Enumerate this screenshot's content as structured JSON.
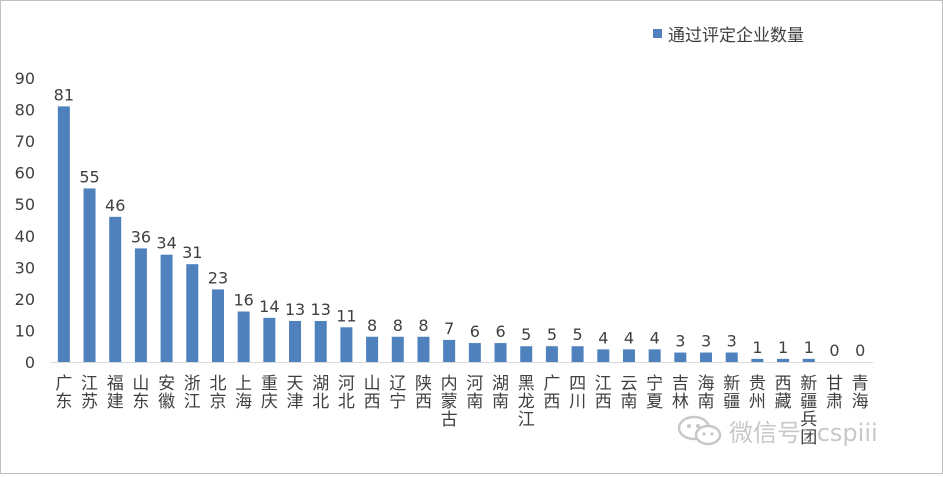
{
  "chart_data": {
    "type": "bar",
    "title": "",
    "xlabel": "",
    "ylabel": "",
    "ylim": [
      0,
      90
    ],
    "yticks": [
      0,
      10,
      20,
      30,
      40,
      50,
      60,
      70,
      80,
      90
    ],
    "grid": false,
    "legend_position": "top-right",
    "categories": [
      "广东",
      "江苏",
      "福建",
      "山东",
      "安徽",
      "浙江",
      "北京",
      "上海",
      "重庆",
      "天津",
      "湖北",
      "河北",
      "山西",
      "辽宁",
      "陕西",
      "内蒙古",
      "河南",
      "湖南",
      "黑龙江",
      "广西",
      "四川",
      "江西",
      "云南",
      "宁夏",
      "吉林",
      "海南",
      "新疆",
      "贵州",
      "西藏",
      "新疆兵团",
      "甘肃",
      "青海"
    ],
    "series": [
      {
        "name": "通过评定企业数量",
        "color": "#4f81bd",
        "values": [
          81,
          55,
          46,
          36,
          34,
          31,
          23,
          16,
          14,
          13,
          13,
          11,
          8,
          8,
          8,
          7,
          6,
          6,
          5,
          5,
          5,
          4,
          4,
          4,
          3,
          3,
          3,
          1,
          1,
          1,
          0,
          0
        ]
      }
    ]
  },
  "watermark": {
    "icon": "wechat-icon",
    "text": "微信号: cspiii"
  }
}
